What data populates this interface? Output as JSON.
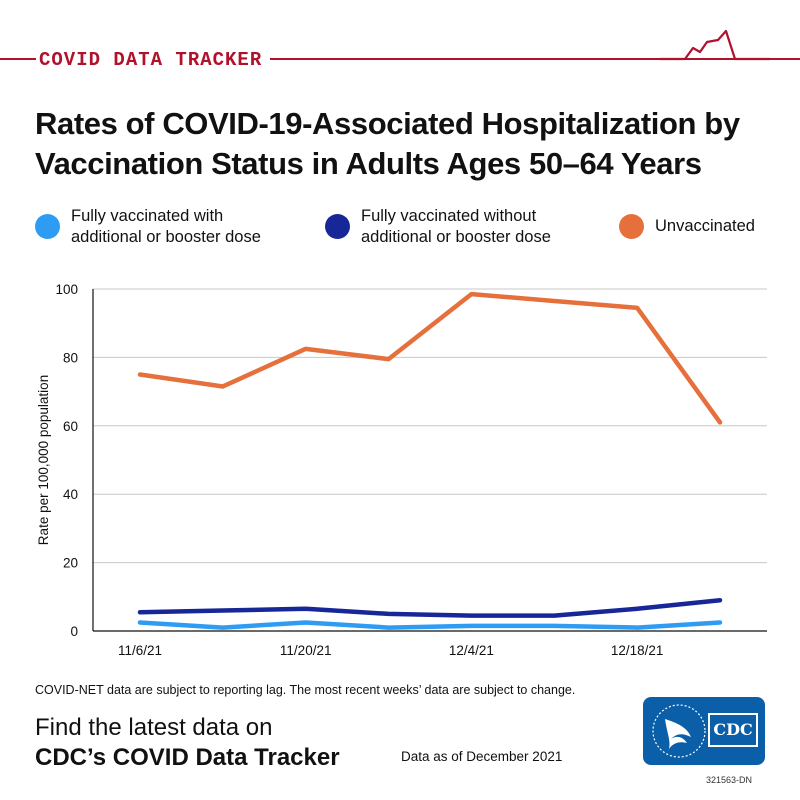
{
  "header": {
    "brand": "COVID DATA TRACKER"
  },
  "title": "Rates of COVID-19-Associated Hospitalization by Vaccination Status in Adults Ages 50–64 Years",
  "legend": [
    {
      "label": "Fully vaccinated with additional or booster dose",
      "color": "#2f9cf4"
    },
    {
      "label": "Fully vaccinated without additional or booster dose",
      "color": "#172797"
    },
    {
      "label": "Unvaccinated",
      "color": "#e5703b"
    }
  ],
  "chart_data": {
    "type": "line",
    "title": "Rates of COVID-19-Associated Hospitalization by Vaccination Status in Adults Ages 50–64 Years",
    "xlabel": "",
    "ylabel": "Rate per 100,000 population",
    "ylim": [
      0,
      100
    ],
    "yticks": [
      0,
      20,
      40,
      60,
      80,
      100
    ],
    "x": [
      "11/6/21",
      "11/13/21",
      "11/20/21",
      "11/27/21",
      "12/4/21",
      "12/11/21",
      "12/18/21",
      "12/25/21"
    ],
    "xtick_labels": [
      "11/6/21",
      "",
      "11/20/21",
      "",
      "12/4/21",
      "",
      "12/18/21",
      ""
    ],
    "grid": true,
    "series": [
      {
        "name": "Unvaccinated",
        "color": "#e5703b",
        "values": [
          75,
          71.5,
          82.5,
          79.5,
          98.5,
          96.5,
          94.5,
          61
        ]
      },
      {
        "name": "Fully vaccinated without additional or booster dose",
        "color": "#172797",
        "values": [
          5.5,
          6,
          6.5,
          5,
          4.5,
          4.5,
          6.5,
          9
        ]
      },
      {
        "name": "Fully vaccinated with additional or booster dose",
        "color": "#2f9cf4",
        "values": [
          2.5,
          1,
          2.5,
          1,
          1.5,
          1.5,
          1,
          2.5
        ]
      }
    ]
  },
  "footnote": "COVID-NET data are subject to reporting lag. The most recent weeks’ data are subject to change.",
  "cta": {
    "line1": "Find the latest data on",
    "line2": "CDC’s COVID Data Tracker"
  },
  "as_of": "Data as of December 2021",
  "logo": {
    "text": "CDC"
  },
  "doc_id": "321563-DN"
}
